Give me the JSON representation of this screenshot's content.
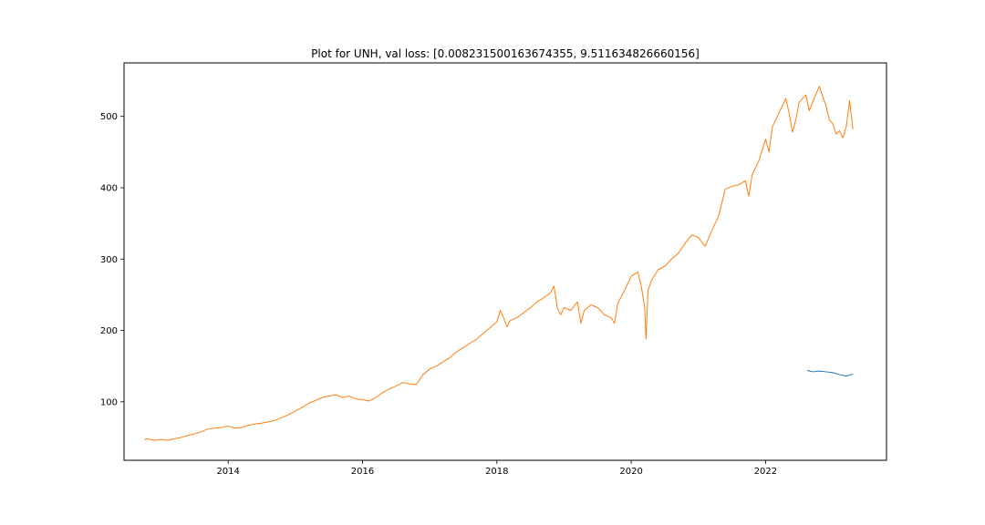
{
  "chart_data": {
    "type": "line",
    "title": "Plot for UNH, val loss: [0.008231500163674355, 9.511634826660156]",
    "xlabel": "",
    "ylabel": "",
    "xlim": [
      2012.45,
      2023.8
    ],
    "ylim": [
      18,
      575
    ],
    "grid": false,
    "legend": "none",
    "x_ticks": [
      2014,
      2016,
      2018,
      2020,
      2022
    ],
    "y_ticks": [
      100,
      200,
      300,
      400,
      500
    ],
    "series": [
      {
        "color": "#ff7f0e",
        "x": [
          2012.75,
          2012.8,
          2012.9,
          2013.0,
          2013.1,
          2013.2,
          2013.3,
          2013.4,
          2013.5,
          2013.6,
          2013.7,
          2013.8,
          2013.9,
          2014.0,
          2014.1,
          2014.2,
          2014.3,
          2014.4,
          2014.5,
          2014.6,
          2014.7,
          2014.8,
          2014.9,
          2015.0,
          2015.1,
          2015.2,
          2015.3,
          2015.4,
          2015.5,
          2015.6,
          2015.7,
          2015.8,
          2015.9,
          2016.0,
          2016.1,
          2016.2,
          2016.3,
          2016.4,
          2016.5,
          2016.6,
          2016.7,
          2016.8,
          2016.9,
          2017.0,
          2017.1,
          2017.2,
          2017.3,
          2017.4,
          2017.5,
          2017.6,
          2017.7,
          2017.8,
          2017.9,
          2018.0,
          2018.05,
          2018.1,
          2018.15,
          2018.2,
          2018.3,
          2018.4,
          2018.5,
          2018.6,
          2018.7,
          2018.8,
          2018.85,
          2018.9,
          2018.95,
          2019.0,
          2019.1,
          2019.2,
          2019.25,
          2019.3,
          2019.4,
          2019.5,
          2019.6,
          2019.7,
          2019.75,
          2019.8,
          2019.9,
          2020.0,
          2020.1,
          2020.15,
          2020.2,
          2020.22,
          2020.25,
          2020.3,
          2020.4,
          2020.5,
          2020.6,
          2020.7,
          2020.8,
          2020.9,
          2021.0,
          2021.1,
          2021.2,
          2021.3,
          2021.4,
          2021.5,
          2021.6,
          2021.7,
          2021.75,
          2021.8,
          2021.9,
          2022.0,
          2022.05,
          2022.1,
          2022.2,
          2022.3,
          2022.35,
          2022.4,
          2022.45,
          2022.5,
          2022.6,
          2022.65,
          2022.7,
          2022.8,
          2022.85,
          2022.9,
          2022.95,
          2023.0,
          2023.05,
          2023.1,
          2023.15,
          2023.2,
          2023.25,
          2023.3
        ],
        "y": [
          47,
          48,
          46,
          47,
          46,
          48,
          50,
          53,
          55,
          58,
          62,
          63,
          64,
          66,
          63,
          64,
          67,
          69,
          70,
          72,
          74,
          78,
          82,
          87,
          92,
          98,
          102,
          106,
          108,
          110,
          106,
          108,
          104,
          103,
          101,
          106,
          113,
          118,
          122,
          127,
          125,
          124,
          138,
          146,
          150,
          156,
          162,
          170,
          176,
          182,
          188,
          196,
          204,
          212,
          228,
          218,
          205,
          214,
          218,
          225,
          232,
          240,
          246,
          253,
          262,
          232,
          222,
          232,
          228,
          240,
          210,
          228,
          236,
          232,
          222,
          218,
          210,
          238,
          256,
          276,
          282,
          262,
          232,
          188,
          256,
          270,
          285,
          290,
          300,
          308,
          322,
          334,
          330,
          318,
          340,
          360,
          398,
          402,
          404,
          410,
          388,
          418,
          438,
          468,
          450,
          485,
          505,
          525,
          505,
          478,
          495,
          520,
          530,
          508,
          520,
          542,
          528,
          515,
          495,
          490,
          475,
          480,
          470,
          485,
          522,
          482
        ],
        "width": 1
      },
      {
        "color": "#1f77b4",
        "x": [
          2022.62,
          2022.7,
          2022.8,
          2022.9,
          2023.0,
          2023.1,
          2023.2,
          2023.3
        ],
        "y": [
          144,
          142,
          143,
          142,
          141,
          138,
          136,
          139
        ],
        "width": 1
      }
    ]
  }
}
